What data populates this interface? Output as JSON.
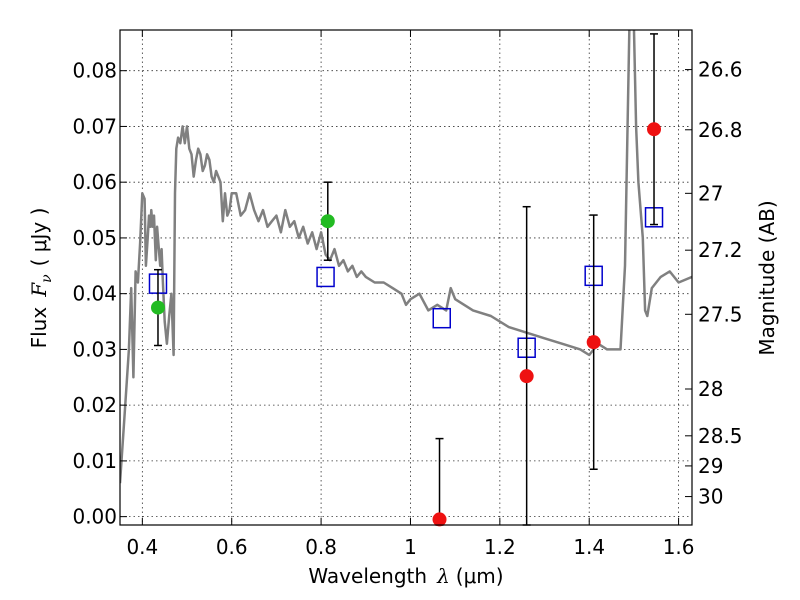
{
  "chart_data": {
    "type": "scatter",
    "xlabel": "Wavelength",
    "xlabel_symbol": "λ",
    "xlabel_unit": "(μm)",
    "ylabel": "Flux",
    "ylabel_symbol": "F",
    "ylabel_subscript": "ν",
    "ylabel_unit": "( μJy )",
    "y2label": "Magnitude (AB)",
    "xlim": [
      0.35,
      1.63
    ],
    "ylim": [
      -0.0015,
      0.0873
    ],
    "grid": true,
    "x_ticks": [
      0.4,
      0.6,
      0.8,
      1.0,
      1.2,
      1.4,
      1.6
    ],
    "x_tick_labels": [
      "0.4",
      "0.6",
      "0.8",
      "1",
      "1.2",
      "1.4",
      "1.6"
    ],
    "y_ticks": [
      0.0,
      0.01,
      0.02,
      0.03,
      0.04,
      0.05,
      0.06,
      0.07,
      0.08
    ],
    "y_tick_labels": [
      "0.00",
      "0.01",
      "0.02",
      "0.03",
      "0.04",
      "0.05",
      "0.06",
      "0.07",
      "0.08"
    ],
    "y2_ticks": [
      {
        "label": "26.6",
        "flux": 0.0802
      },
      {
        "label": "26.8",
        "flux": 0.0694
      },
      {
        "label": "27",
        "flux": 0.058
      },
      {
        "label": "27.2",
        "flux": 0.0478
      },
      {
        "label": "27.5",
        "flux": 0.0363
      },
      {
        "label": "28",
        "flux": 0.0229
      },
      {
        "label": "28.5",
        "flux": 0.0145
      },
      {
        "label": "29",
        "flux": 0.0091
      },
      {
        "label": "30",
        "flux": 0.0036
      }
    ],
    "series": [
      {
        "type": "line",
        "color": "#808080",
        "x": [
          0.35,
          0.36,
          0.37,
          0.375,
          0.38,
          0.385,
          0.39,
          0.395,
          0.4,
          0.405,
          0.408,
          0.412,
          0.415,
          0.418,
          0.42,
          0.423,
          0.426,
          0.43,
          0.433,
          0.436,
          0.44,
          0.443,
          0.446,
          0.45,
          0.455,
          0.46,
          0.465,
          0.47,
          0.473,
          0.476,
          0.48,
          0.485,
          0.49,
          0.495,
          0.5,
          0.505,
          0.51,
          0.515,
          0.52,
          0.525,
          0.53,
          0.535,
          0.54,
          0.545,
          0.55,
          0.555,
          0.56,
          0.565,
          0.57,
          0.575,
          0.58,
          0.585,
          0.59,
          0.595,
          0.6,
          0.61,
          0.62,
          0.63,
          0.64,
          0.65,
          0.66,
          0.67,
          0.68,
          0.69,
          0.7,
          0.71,
          0.72,
          0.73,
          0.74,
          0.75,
          0.76,
          0.77,
          0.78,
          0.79,
          0.8,
          0.81,
          0.82,
          0.83,
          0.84,
          0.85,
          0.86,
          0.87,
          0.88,
          0.89,
          0.9,
          0.92,
          0.94,
          0.96,
          0.98,
          0.99,
          1.0,
          1.02,
          1.04,
          1.06,
          1.08,
          1.09,
          1.1,
          1.14,
          1.18,
          1.22,
          1.26,
          1.3,
          1.34,
          1.38,
          1.4,
          1.42,
          1.44,
          1.47,
          1.48,
          1.49,
          1.5,
          1.505,
          1.51,
          1.52,
          1.525,
          1.53,
          1.54,
          1.56,
          1.58,
          1.6,
          1.63
        ],
        "values": [
          0.006,
          0.018,
          0.03,
          0.041,
          0.025,
          0.044,
          0.042,
          0.049,
          0.058,
          0.057,
          0.045,
          0.05,
          0.054,
          0.052,
          0.055,
          0.052,
          0.054,
          0.046,
          0.052,
          0.049,
          0.045,
          0.048,
          0.042,
          0.035,
          0.031,
          0.036,
          0.04,
          0.029,
          0.058,
          0.066,
          0.068,
          0.067,
          0.07,
          0.067,
          0.07,
          0.066,
          0.065,
          0.061,
          0.064,
          0.066,
          0.065,
          0.062,
          0.063,
          0.065,
          0.064,
          0.061,
          0.06,
          0.062,
          0.061,
          0.06,
          0.053,
          0.058,
          0.054,
          0.055,
          0.058,
          0.058,
          0.054,
          0.055,
          0.058,
          0.055,
          0.053,
          0.055,
          0.052,
          0.053,
          0.054,
          0.051,
          0.055,
          0.052,
          0.053,
          0.05,
          0.052,
          0.049,
          0.051,
          0.048,
          0.051,
          0.047,
          0.046,
          0.048,
          0.045,
          0.046,
          0.044,
          0.045,
          0.043,
          0.044,
          0.043,
          0.042,
          0.042,
          0.041,
          0.04,
          0.038,
          0.039,
          0.04,
          0.037,
          0.038,
          0.037,
          0.041,
          0.039,
          0.037,
          0.036,
          0.034,
          0.033,
          0.032,
          0.031,
          0.03,
          0.029,
          0.031,
          0.03,
          0.03,
          0.045,
          0.088,
          0.088,
          0.07,
          0.06,
          0.05,
          0.037,
          0.036,
          0.041,
          0.043,
          0.044,
          0.042,
          0.043
        ]
      },
      {
        "type": "scatter",
        "marker": "open-square",
        "color": "#0000cc",
        "x": [
          0.435,
          0.81,
          1.07,
          1.26,
          1.41,
          1.545
        ],
        "values": [
          0.0418,
          0.043,
          0.0356,
          0.0303,
          0.0432,
          0.0537
        ]
      },
      {
        "type": "scatter",
        "marker": "circle-errorbar",
        "color": "#22bb22",
        "x": [
          0.435,
          0.815
        ],
        "values": [
          0.0375,
          0.053
        ],
        "yerr_low": [
          0.0307,
          0.046
        ],
        "yerr_high": [
          0.0443,
          0.06
        ]
      },
      {
        "type": "scatter",
        "marker": "circle-errorbar",
        "color": "#ee1111",
        "x": [
          1.065,
          1.26,
          1.41,
          1.545
        ],
        "values": [
          -0.0005,
          0.0252,
          0.0313,
          0.0695
        ],
        "yerr_low": [
          -0.0015,
          -0.0015,
          0.0085,
          0.0524
        ],
        "yerr_high": [
          0.014,
          0.0556,
          0.0541,
          0.0866
        ]
      }
    ]
  }
}
